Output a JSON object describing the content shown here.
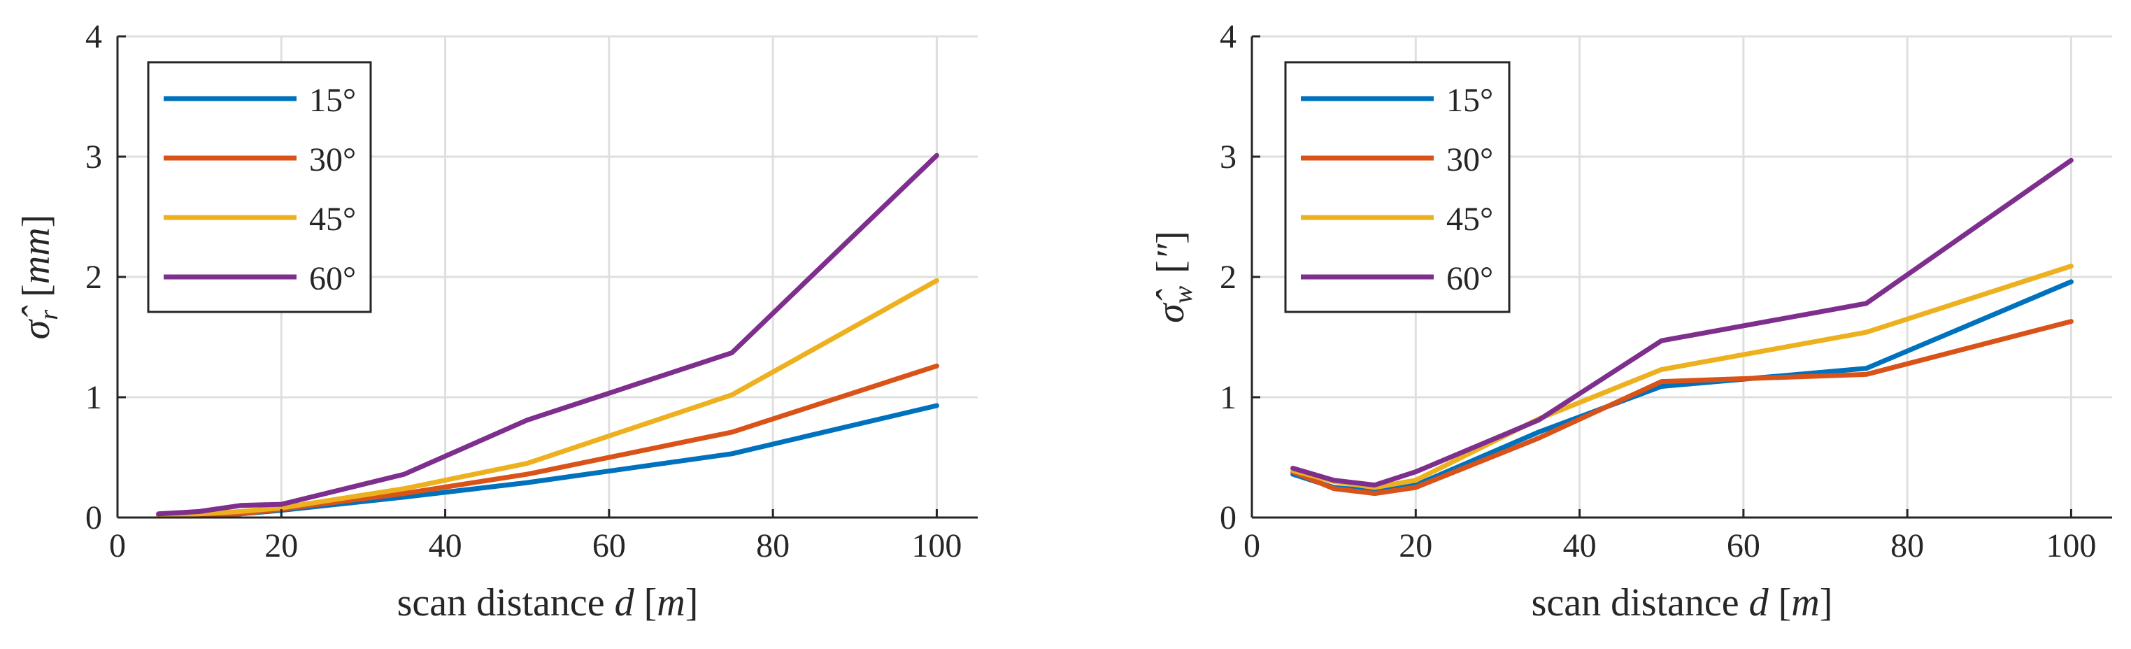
{
  "chart_data": [
    {
      "type": "line",
      "id": "left",
      "x": [
        5,
        10,
        15,
        20,
        35,
        50,
        75,
        100
      ],
      "xlim": [
        0,
        105
      ],
      "ylim": [
        0,
        4
      ],
      "xticks": [
        "0",
        "20",
        "40",
        "60",
        "80",
        "100"
      ],
      "yticks": [
        "0",
        "1",
        "2",
        "3",
        "4"
      ],
      "xlabel_prefix": "scan distance ",
      "xlabel_var": "d",
      "xlabel_unit_open": " [",
      "xlabel_unit": "m",
      "xlabel_unit_close": "]",
      "ylabel_symbol": "σ̂",
      "ylabel_sub": "r",
      "ylabel_unit_open": "[",
      "ylabel_unit": "mm",
      "ylabel_unit_close": "]",
      "grid": true,
      "legend_position": "top-left",
      "series": [
        {
          "name": "15°",
          "color": "#0072BD",
          "values": [
            0.02,
            0.02,
            0.03,
            0.06,
            0.17,
            0.29,
            0.53,
            0.93
          ]
        },
        {
          "name": "30°",
          "color": "#D95319",
          "values": [
            0.02,
            0.02,
            0.03,
            0.07,
            0.2,
            0.36,
            0.71,
            1.26
          ]
        },
        {
          "name": "45°",
          "color": "#EDB120",
          "values": [
            0.02,
            0.03,
            0.05,
            0.08,
            0.24,
            0.45,
            1.02,
            1.97
          ]
        },
        {
          "name": "60°",
          "color": "#7E2F8E",
          "values": [
            0.03,
            0.05,
            0.1,
            0.11,
            0.36,
            0.81,
            1.37,
            3.01
          ]
        }
      ]
    },
    {
      "type": "line",
      "id": "right",
      "x": [
        5,
        10,
        15,
        20,
        35,
        50,
        75,
        100
      ],
      "xlim": [
        0,
        105
      ],
      "ylim": [
        0,
        4
      ],
      "xticks": [
        "0",
        "20",
        "40",
        "60",
        "80",
        "100"
      ],
      "yticks": [
        "0",
        "1",
        "2",
        "3",
        "4"
      ],
      "xlabel_prefix": "scan distance ",
      "xlabel_var": "d",
      "xlabel_unit_open": " [",
      "xlabel_unit": "m",
      "xlabel_unit_close": "]",
      "ylabel_symbol": "σ̂",
      "ylabel_sub": "w",
      "ylabel_unit_open": "[",
      "ylabel_unit": "″",
      "ylabel_unit_close": "]",
      "grid": true,
      "legend_position": "top-left",
      "series": [
        {
          "name": "15°",
          "color": "#0072BD",
          "values": [
            0.36,
            0.25,
            0.22,
            0.27,
            0.71,
            1.09,
            1.24,
            1.96
          ]
        },
        {
          "name": "30°",
          "color": "#D95319",
          "values": [
            0.38,
            0.24,
            0.2,
            0.25,
            0.66,
            1.13,
            1.19,
            1.63
          ]
        },
        {
          "name": "45°",
          "color": "#EDB120",
          "values": [
            0.39,
            0.3,
            0.25,
            0.31,
            0.82,
            1.23,
            1.54,
            2.09
          ]
        },
        {
          "name": "60°",
          "color": "#7E2F8E",
          "values": [
            0.41,
            0.31,
            0.27,
            0.38,
            0.81,
            1.47,
            1.78,
            2.97
          ]
        }
      ]
    }
  ]
}
